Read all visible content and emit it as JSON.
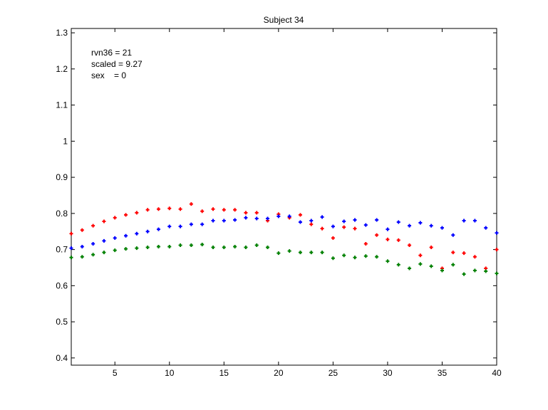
{
  "chart_data": {
    "type": "scatter",
    "title": "Subject 34",
    "xlabel": "",
    "ylabel": "",
    "xlim": [
      1,
      40
    ],
    "ylim": [
      0.38,
      1.312
    ],
    "xticks": [
      5,
      10,
      15,
      20,
      25,
      30,
      35,
      40
    ],
    "yticks": [
      0.4,
      0.5,
      0.6,
      0.7,
      0.8,
      0.9,
      1,
      1.1,
      1.2,
      1.3
    ],
    "xtick_labels": [
      "5",
      "10",
      "15",
      "20",
      "25",
      "30",
      "35",
      "40"
    ],
    "ytick_labels": [
      "0.4",
      "0.5",
      "0.6",
      "0.7",
      "0.8",
      "0.9",
      "1",
      "1.1",
      "1.2",
      "1.3"
    ],
    "grid": false,
    "annotations": [
      "rvn36 = 21",
      "scaled = 9.27",
      "sex    = 0"
    ],
    "x": [
      1,
      2,
      3,
      4,
      5,
      6,
      7,
      8,
      9,
      10,
      11,
      12,
      13,
      14,
      15,
      16,
      17,
      18,
      19,
      20,
      21,
      22,
      23,
      24,
      25,
      26,
      27,
      28,
      29,
      30,
      31,
      32,
      33,
      34,
      35,
      36,
      37,
      38,
      39,
      40
    ],
    "series": [
      {
        "name": "red",
        "color": "#ff0000",
        "values": [
          0.744,
          0.754,
          0.766,
          0.778,
          0.788,
          0.796,
          0.802,
          0.81,
          0.812,
          0.814,
          0.812,
          0.826,
          0.806,
          0.812,
          0.81,
          0.81,
          0.802,
          0.802,
          0.78,
          0.798,
          0.788,
          0.796,
          0.77,
          0.758,
          0.732,
          0.762,
          0.758,
          0.716,
          0.74,
          0.728,
          0.726,
          0.712,
          0.684,
          0.706,
          0.648,
          0.692,
          0.69,
          0.68,
          0.648,
          0.7
        ]
      },
      {
        "name": "blue",
        "color": "#0000ff",
        "values": [
          0.704,
          0.708,
          0.716,
          0.724,
          0.732,
          0.738,
          0.744,
          0.75,
          0.756,
          0.764,
          0.764,
          0.77,
          0.77,
          0.78,
          0.78,
          0.782,
          0.788,
          0.786,
          0.786,
          0.792,
          0.792,
          0.776,
          0.78,
          0.79,
          0.764,
          0.778,
          0.782,
          0.768,
          0.782,
          0.756,
          0.776,
          0.766,
          0.774,
          0.766,
          0.76,
          0.74,
          0.78,
          0.78,
          0.76,
          0.746
        ]
      },
      {
        "name": "green",
        "color": "#008000",
        "values": [
          0.678,
          0.68,
          0.686,
          0.692,
          0.698,
          0.702,
          0.704,
          0.706,
          0.708,
          0.708,
          0.712,
          0.712,
          0.714,
          0.706,
          0.706,
          0.708,
          0.706,
          0.712,
          0.706,
          0.69,
          0.696,
          0.692,
          0.692,
          0.692,
          0.676,
          0.684,
          0.678,
          0.682,
          0.68,
          0.668,
          0.658,
          0.648,
          0.66,
          0.654,
          0.642,
          0.658,
          0.632,
          0.642,
          0.64,
          0.634
        ]
      }
    ]
  }
}
